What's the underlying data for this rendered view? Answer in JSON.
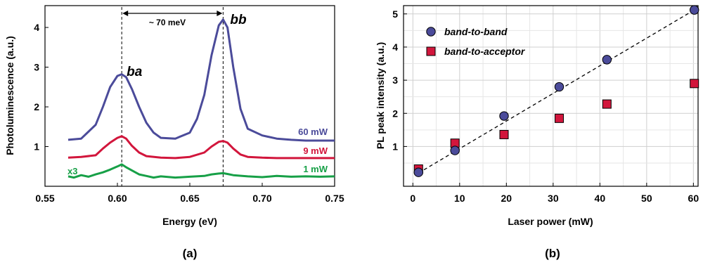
{
  "chart_data": [
    {
      "type": "line",
      "panel_label": "(a)",
      "xlabel": "Energy (eV)",
      "ylabel": "Photoluminescence (a.u.)",
      "xlim": [
        0.55,
        0.75
      ],
      "ylim": [
        0,
        4.55
      ],
      "x_ticks": [
        "0.55",
        "0.60",
        "0.65",
        "0.70",
        "0.75"
      ],
      "y_ticks": [
        "1",
        "2",
        "3",
        "4"
      ],
      "grid": false,
      "peak_labels": [
        {
          "text": "ba",
          "x": 0.603
        },
        {
          "text": "bb",
          "x": 0.673
        }
      ],
      "separation_annotation": "~ 70 meV",
      "multiplier_label": "x3",
      "series": [
        {
          "name": "60 mW",
          "color": "#4b4b9a",
          "x": [
            0.566,
            0.575,
            0.585,
            0.59,
            0.595,
            0.6,
            0.603,
            0.606,
            0.61,
            0.615,
            0.62,
            0.625,
            0.63,
            0.64,
            0.65,
            0.655,
            0.66,
            0.665,
            0.67,
            0.673,
            0.676,
            0.68,
            0.685,
            0.69,
            0.7,
            0.71,
            0.72,
            0.73,
            0.74,
            0.75
          ],
          "values": [
            1.17,
            1.2,
            1.55,
            2.0,
            2.5,
            2.78,
            2.82,
            2.75,
            2.45,
            2.0,
            1.6,
            1.35,
            1.22,
            1.2,
            1.35,
            1.7,
            2.3,
            3.3,
            4.05,
            4.2,
            4.0,
            3.0,
            1.95,
            1.45,
            1.28,
            1.2,
            1.17,
            1.15,
            1.15,
            1.15
          ]
        },
        {
          "name": "9 mW",
          "color": "#d2163c",
          "x": [
            0.566,
            0.575,
            0.585,
            0.59,
            0.595,
            0.6,
            0.603,
            0.606,
            0.61,
            0.615,
            0.62,
            0.63,
            0.64,
            0.65,
            0.66,
            0.665,
            0.67,
            0.673,
            0.676,
            0.68,
            0.685,
            0.69,
            0.7,
            0.71,
            0.72,
            0.73,
            0.74,
            0.75
          ],
          "values": [
            0.72,
            0.74,
            0.78,
            0.95,
            1.1,
            1.22,
            1.26,
            1.2,
            1.02,
            0.85,
            0.76,
            0.72,
            0.71,
            0.74,
            0.85,
            1.0,
            1.12,
            1.14,
            1.1,
            0.95,
            0.8,
            0.74,
            0.72,
            0.71,
            0.71,
            0.71,
            0.71,
            0.71
          ]
        },
        {
          "name": "1 mW",
          "color": "#17a047",
          "x": [
            0.566,
            0.57,
            0.575,
            0.58,
            0.585,
            0.59,
            0.595,
            0.6,
            0.603,
            0.606,
            0.61,
            0.615,
            0.62,
            0.625,
            0.63,
            0.64,
            0.65,
            0.66,
            0.665,
            0.67,
            0.673,
            0.676,
            0.68,
            0.69,
            0.7,
            0.71,
            0.72,
            0.73,
            0.74,
            0.75
          ],
          "values": [
            0.25,
            0.22,
            0.28,
            0.24,
            0.3,
            0.35,
            0.42,
            0.5,
            0.55,
            0.48,
            0.4,
            0.3,
            0.26,
            0.22,
            0.25,
            0.22,
            0.24,
            0.26,
            0.3,
            0.32,
            0.33,
            0.31,
            0.28,
            0.25,
            0.23,
            0.26,
            0.24,
            0.25,
            0.24,
            0.25
          ]
        }
      ]
    },
    {
      "type": "scatter",
      "panel_label": "(b)",
      "xlabel": "Laser power (mW)",
      "ylabel": "PL peak intensity (a.u.)",
      "xlim": [
        -2,
        61
      ],
      "ylim": [
        -0.2,
        5.25
      ],
      "x_ticks": [
        "0",
        "10",
        "20",
        "30",
        "40",
        "50",
        "60"
      ],
      "y_ticks": [
        "1",
        "2",
        "3",
        "4",
        "5"
      ],
      "grid": true,
      "legend_position": "top-left",
      "series": [
        {
          "name": "band-to-band",
          "marker": "circle",
          "color": "#4b4b9a",
          "x": [
            1.2,
            9,
            19.5,
            31.3,
            41.5,
            60.2
          ],
          "values": [
            0.22,
            0.88,
            1.92,
            2.8,
            3.62,
            5.12
          ]
        },
        {
          "name": "band-to-acceptor",
          "marker": "square",
          "color": "#d2163c",
          "x": [
            1.2,
            9,
            19.5,
            31.3,
            41.5,
            60.2
          ],
          "values": [
            0.32,
            1.1,
            1.36,
            1.85,
            2.28,
            2.9
          ]
        }
      ],
      "fit_line": {
        "x": [
          1.2,
          60.2
        ],
        "values": [
          0.2,
          5.12
        ]
      }
    }
  ]
}
